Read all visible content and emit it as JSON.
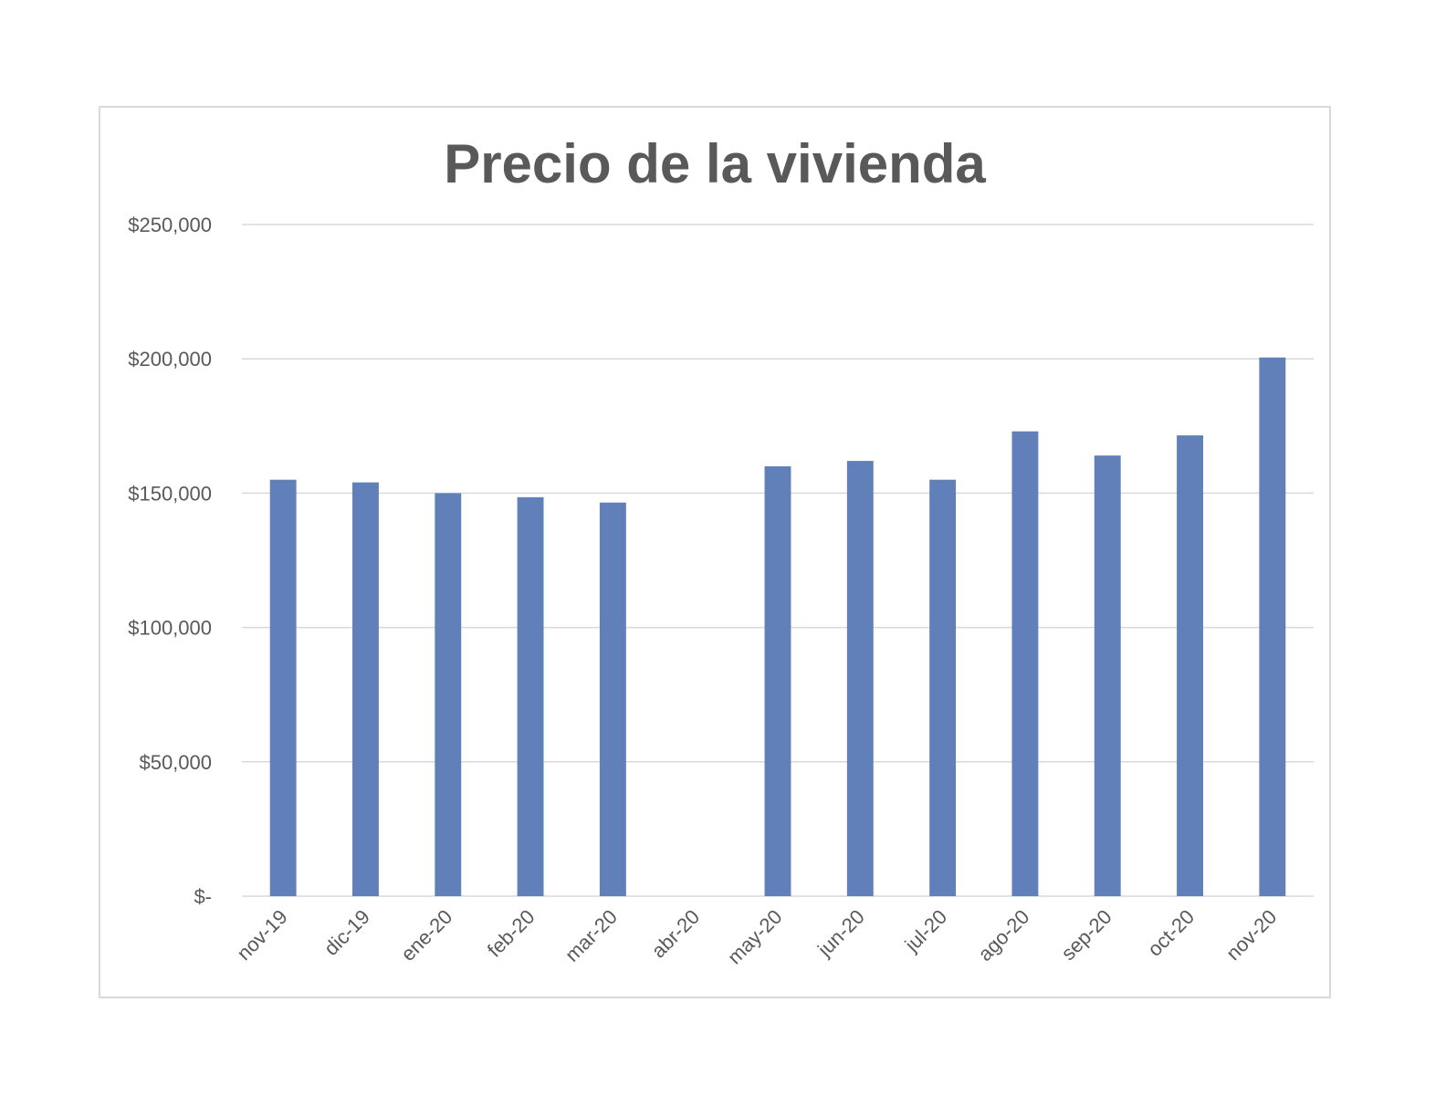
{
  "chart_data": {
    "type": "bar",
    "title": "Precio de la vivienda",
    "xlabel": "",
    "ylabel": "",
    "categories": [
      "nov-19",
      "dic-19",
      "ene-20",
      "feb-20",
      "mar-20",
      "abr-20",
      "may-20",
      "jun-20",
      "jul-20",
      "ago-20",
      "sep-20",
      "oct-20",
      "nov-20"
    ],
    "values": [
      155000,
      154000,
      150000,
      148500,
      146500,
      null,
      160000,
      162000,
      155000,
      173000,
      164000,
      171500,
      200500
    ],
    "ylim": [
      0,
      250000
    ],
    "yticks": [
      0,
      50000,
      100000,
      150000,
      200000,
      250000
    ],
    "ytick_labels": [
      "$-",
      "$50,000",
      "$100,000",
      "$150,000",
      "$200,000",
      "$250,000"
    ],
    "grid": true,
    "legend": "none",
    "bar_color": "#6180b9",
    "grid_color": "#d9d9d9",
    "text_color": "#595959"
  }
}
